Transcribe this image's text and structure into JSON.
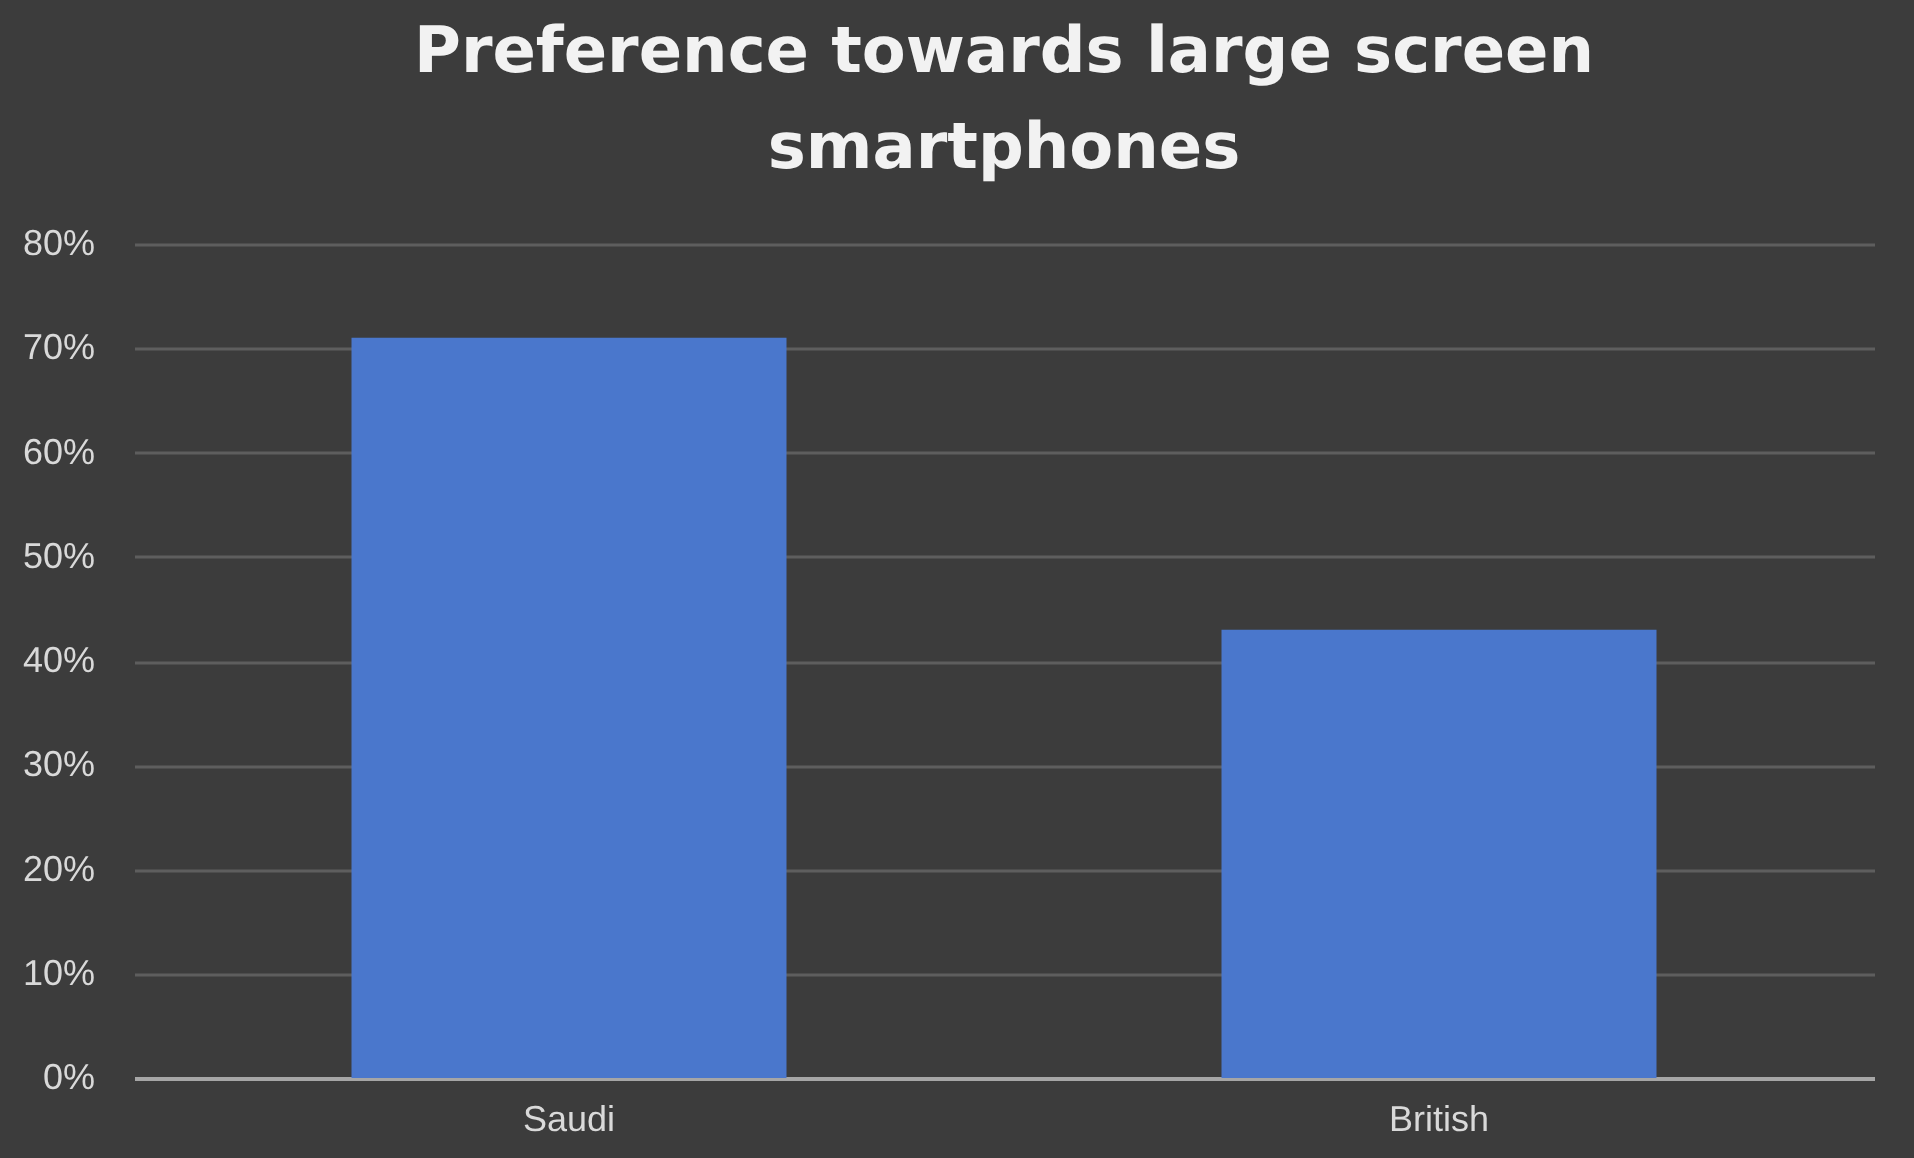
{
  "chart_data": {
    "type": "bar",
    "title": "Preference towards large screen smartphones",
    "categories": [
      "Saudi",
      "British"
    ],
    "values": [
      71,
      43
    ],
    "color": "#4a77cc",
    "ylim": [
      0,
      80
    ],
    "yticks": [
      {
        "value": 0,
        "label": "0%"
      },
      {
        "value": 10,
        "label": "10%"
      },
      {
        "value": 20,
        "label": "20%"
      },
      {
        "value": 30,
        "label": "30%"
      },
      {
        "value": 40,
        "label": "40%"
      },
      {
        "value": 50,
        "label": "50%"
      },
      {
        "value": 60,
        "label": "60%"
      },
      {
        "value": 70,
        "label": "70%"
      },
      {
        "value": 80,
        "label": "80%"
      }
    ],
    "grid": "y"
  }
}
